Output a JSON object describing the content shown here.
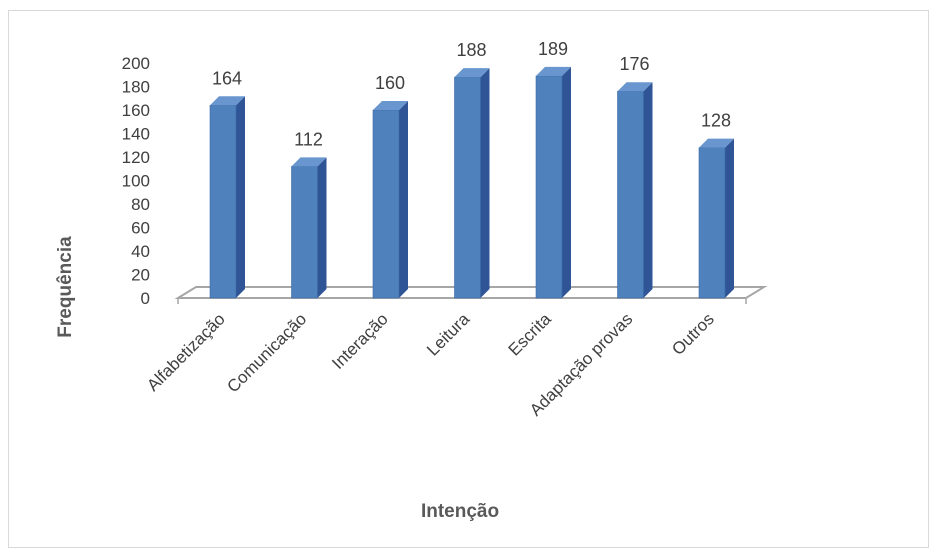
{
  "chart_data": {
    "type": "bar",
    "title": "",
    "xlabel": "Intenção",
    "ylabel": "Frequência",
    "categories": [
      "Alfabetização",
      "Comunicação",
      "Interação",
      "Leitura",
      "Escrita",
      "Adaptação provas",
      "Outros"
    ],
    "values": [
      164,
      112,
      160,
      188,
      189,
      176,
      128
    ],
    "ylim": [
      0,
      200
    ],
    "yticks": [
      "0",
      "20",
      "40",
      "60",
      "80",
      "100",
      "120",
      "140",
      "160",
      "180",
      "200"
    ],
    "data_labels": [
      "164",
      "112",
      "160",
      "188",
      "189",
      "176",
      "128"
    ],
    "grid": false,
    "legend": "none",
    "style": "3d-clustered-column",
    "colors": {
      "bar_front": "#4f81bd",
      "bar_side": "#2f5597",
      "bar_top": "#6a96cf",
      "floor": "#a6a6a6",
      "text": "#404040",
      "axis_title": "#595959"
    }
  }
}
